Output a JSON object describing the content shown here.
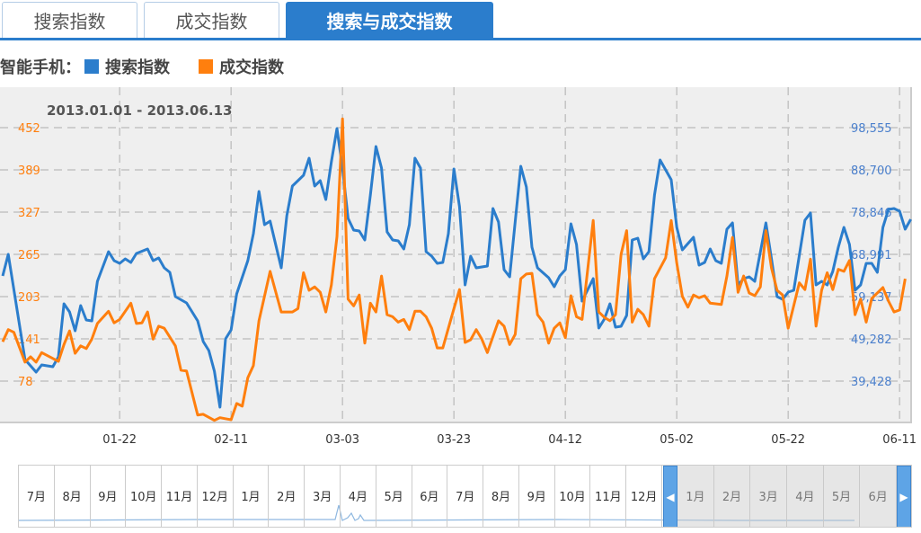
{
  "tabs": [
    {
      "label": "搜索指数",
      "active": false
    },
    {
      "label": "成交指数",
      "active": false
    },
    {
      "label": "搜索与成交指数",
      "active": true
    }
  ],
  "legend": {
    "prefix": "智能手机：",
    "items": [
      {
        "label": "搜索指数",
        "color": "#2b7dcc"
      },
      {
        "label": "成交指数",
        "color": "#ff7f0e"
      }
    ]
  },
  "chart_data": {
    "type": "line",
    "title": "2013.01.01 - 2013.06.13",
    "x_unit": "days since 2013-01-01",
    "xlim": [
      0,
      163
    ],
    "x_ticks": [
      {
        "day": 21,
        "label": "01-22"
      },
      {
        "day": 41,
        "label": "02-11"
      },
      {
        "day": 61,
        "label": "03-03"
      },
      {
        "day": 81,
        "label": "03-23"
      },
      {
        "day": 101,
        "label": "04-12"
      },
      {
        "day": 121,
        "label": "05-02"
      },
      {
        "day": 141,
        "label": "05-22"
      },
      {
        "day": 161,
        "label": "06-11"
      }
    ],
    "y_left": {
      "ticks": [
        "452",
        "389",
        "327",
        "265",
        "203",
        "141",
        "78"
      ],
      "values": [
        452,
        389,
        327,
        265,
        203,
        141,
        78
      ],
      "color": "#ff7f0e"
    },
    "y_right": {
      "ticks": [
        "98,555",
        "88,700",
        "78,846",
        "68,991",
        "59,137",
        "49,282",
        "39,428"
      ],
      "values": [
        98555,
        88700,
        78846,
        68991,
        59137,
        49282,
        39428
      ],
      "color": "#4a7fcc"
    },
    "grid": true,
    "series": [
      {
        "name": "搜索指数",
        "axis": "right",
        "color": "#2b7dcc",
        "points": [
          [
            0,
            63960
          ],
          [
            1,
            68990
          ],
          [
            4,
            44460
          ],
          [
            6,
            41525
          ],
          [
            7,
            43200
          ],
          [
            9,
            42780
          ],
          [
            10,
            45090
          ],
          [
            11,
            57460
          ],
          [
            12,
            55570
          ],
          [
            13,
            51170
          ],
          [
            14,
            57040
          ],
          [
            15,
            53690
          ],
          [
            16,
            53480
          ],
          [
            17,
            62700
          ],
          [
            19,
            69620
          ],
          [
            20,
            67520
          ],
          [
            21,
            66900
          ],
          [
            22,
            67940
          ],
          [
            23,
            67100
          ],
          [
            24,
            69200
          ],
          [
            26,
            70250
          ],
          [
            27,
            67520
          ],
          [
            28,
            68150
          ],
          [
            29,
            65850
          ],
          [
            30,
            64800
          ],
          [
            31,
            59140
          ],
          [
            33,
            57670
          ],
          [
            35,
            53480
          ],
          [
            36,
            48650
          ],
          [
            37,
            46560
          ],
          [
            38,
            41735
          ],
          [
            39,
            33350
          ],
          [
            40,
            49280
          ],
          [
            41,
            51380
          ],
          [
            42,
            59770
          ],
          [
            44,
            67520
          ],
          [
            45,
            73810
          ],
          [
            46,
            83670
          ],
          [
            47,
            75910
          ],
          [
            48,
            76750
          ],
          [
            50,
            65850
          ],
          [
            51,
            78010
          ],
          [
            52,
            84930
          ],
          [
            54,
            87440
          ],
          [
            55,
            91430
          ],
          [
            56,
            84930
          ],
          [
            57,
            86180
          ],
          [
            58,
            81780
          ],
          [
            59,
            90590
          ],
          [
            60,
            98350
          ],
          [
            61,
            89120
          ],
          [
            62,
            77380
          ],
          [
            63,
            74650
          ],
          [
            64,
            74440
          ],
          [
            65,
            72350
          ],
          [
            66,
            82830
          ],
          [
            67,
            94150
          ],
          [
            68,
            89120
          ],
          [
            69,
            74230
          ],
          [
            70,
            72350
          ],
          [
            71,
            72140
          ],
          [
            72,
            70250
          ],
          [
            73,
            75910
          ],
          [
            74,
            91430
          ],
          [
            75,
            89120
          ],
          [
            76,
            69620
          ],
          [
            77,
            68570
          ],
          [
            78,
            66900
          ],
          [
            79,
            67100
          ],
          [
            80,
            73810
          ],
          [
            81,
            88910
          ],
          [
            82,
            80100
          ],
          [
            83,
            61860
          ],
          [
            84,
            68570
          ],
          [
            85,
            65850
          ],
          [
            87,
            66270
          ],
          [
            88,
            79690
          ],
          [
            89,
            76540
          ],
          [
            90,
            65430
          ],
          [
            91,
            63750
          ],
          [
            93,
            89540
          ],
          [
            94,
            84720
          ],
          [
            95,
            70670
          ],
          [
            96,
            65850
          ],
          [
            98,
            63540
          ],
          [
            99,
            61440
          ],
          [
            100,
            63960
          ],
          [
            101,
            65430
          ],
          [
            102,
            76120
          ],
          [
            103,
            71300
          ],
          [
            104,
            58090
          ],
          [
            106,
            63330
          ],
          [
            107,
            51800
          ],
          [
            108,
            53900
          ],
          [
            109,
            57460
          ],
          [
            110,
            52010
          ],
          [
            111,
            52220
          ],
          [
            112,
            54730
          ],
          [
            113,
            72350
          ],
          [
            114,
            72770
          ],
          [
            115,
            67940
          ],
          [
            116,
            69620
          ],
          [
            117,
            82830
          ],
          [
            118,
            91010
          ],
          [
            120,
            86390
          ],
          [
            121,
            75280
          ],
          [
            122,
            70040
          ],
          [
            124,
            72980
          ],
          [
            125,
            66480
          ],
          [
            126,
            67100
          ],
          [
            127,
            70250
          ],
          [
            128,
            67520
          ],
          [
            129,
            66900
          ],
          [
            130,
            74860
          ],
          [
            131,
            76330
          ],
          [
            132,
            61860
          ],
          [
            133,
            63330
          ],
          [
            134,
            63750
          ],
          [
            135,
            62700
          ],
          [
            137,
            76330
          ],
          [
            138,
            67940
          ],
          [
            139,
            59140
          ],
          [
            140,
            58510
          ],
          [
            141,
            60190
          ],
          [
            142,
            60600
          ],
          [
            144,
            76960
          ],
          [
            145,
            78640
          ],
          [
            146,
            61860
          ],
          [
            147,
            62700
          ],
          [
            148,
            61860
          ],
          [
            149,
            65010
          ],
          [
            150,
            70670
          ],
          [
            151,
            75280
          ],
          [
            152,
            71300
          ],
          [
            153,
            60600
          ],
          [
            154,
            61860
          ],
          [
            155,
            66900
          ],
          [
            156,
            66900
          ],
          [
            157,
            64800
          ],
          [
            158,
            75280
          ],
          [
            159,
            79480
          ],
          [
            160,
            79690
          ],
          [
            161,
            79060
          ],
          [
            162,
            74860
          ],
          [
            163,
            77170
          ]
        ]
      },
      {
        "name": "成交指数",
        "axis": "left",
        "color": "#ff7f0e",
        "points": [
          [
            0,
            136
          ],
          [
            1,
            154
          ],
          [
            2,
            150
          ],
          [
            4,
            106
          ],
          [
            5,
            114
          ],
          [
            6,
            106
          ],
          [
            7,
            120
          ],
          [
            10,
            107
          ],
          [
            11,
            132
          ],
          [
            12,
            152
          ],
          [
            13,
            119
          ],
          [
            14,
            130
          ],
          [
            15,
            126
          ],
          [
            16,
            140
          ],
          [
            17,
            163
          ],
          [
            19,
            181
          ],
          [
            20,
            164
          ],
          [
            21,
            169
          ],
          [
            23,
            193
          ],
          [
            24,
            163
          ],
          [
            25,
            164
          ],
          [
            26,
            180
          ],
          [
            27,
            140
          ],
          [
            28,
            159
          ],
          [
            29,
            156
          ],
          [
            31,
            130
          ],
          [
            32,
            94
          ],
          [
            33,
            93
          ],
          [
            35,
            28
          ],
          [
            36,
            29
          ],
          [
            38,
            20
          ],
          [
            39,
            24
          ],
          [
            41,
            21
          ],
          [
            42,
            45
          ],
          [
            43,
            41
          ],
          [
            44,
            83
          ],
          [
            45,
            101
          ],
          [
            46,
            167
          ],
          [
            48,
            240
          ],
          [
            50,
            180
          ],
          [
            52,
            180
          ],
          [
            53,
            185
          ],
          [
            54,
            238
          ],
          [
            55,
            212
          ],
          [
            56,
            217
          ],
          [
            57,
            209
          ],
          [
            58,
            180
          ],
          [
            59,
            220
          ],
          [
            60,
            291
          ],
          [
            61,
            465
          ],
          [
            62,
            199
          ],
          [
            63,
            189
          ],
          [
            64,
            205
          ],
          [
            65,
            134
          ],
          [
            66,
            193
          ],
          [
            67,
            180
          ],
          [
            68,
            233
          ],
          [
            69,
            176
          ],
          [
            70,
            173
          ],
          [
            71,
            165
          ],
          [
            72,
            169
          ],
          [
            73,
            154
          ],
          [
            74,
            181
          ],
          [
            75,
            181
          ],
          [
            76,
            173
          ],
          [
            77,
            156
          ],
          [
            78,
            127
          ],
          [
            79,
            127
          ],
          [
            80,
            156
          ],
          [
            81,
            185
          ],
          [
            82,
            213
          ],
          [
            83,
            135
          ],
          [
            84,
            139
          ],
          [
            85,
            154
          ],
          [
            86,
            140
          ],
          [
            87,
            120
          ],
          [
            89,
            167
          ],
          [
            90,
            159
          ],
          [
            91,
            132
          ],
          [
            92,
            147
          ],
          [
            93,
            229
          ],
          [
            94,
            236
          ],
          [
            95,
            237
          ],
          [
            96,
            176
          ],
          [
            97,
            165
          ],
          [
            98,
            134
          ],
          [
            99,
            156
          ],
          [
            100,
            164
          ],
          [
            101,
            142
          ],
          [
            102,
            204
          ],
          [
            103,
            173
          ],
          [
            104,
            169
          ],
          [
            106,
            315
          ],
          [
            107,
            180
          ],
          [
            108,
            172
          ],
          [
            109,
            167
          ],
          [
            110,
            176
          ],
          [
            111,
            265
          ],
          [
            112,
            300
          ],
          [
            113,
            165
          ],
          [
            114,
            184
          ],
          [
            115,
            176
          ],
          [
            116,
            159
          ],
          [
            117,
            229
          ],
          [
            119,
            260
          ],
          [
            120,
            315
          ],
          [
            121,
            252
          ],
          [
            122,
            203
          ],
          [
            123,
            187
          ],
          [
            124,
            205
          ],
          [
            125,
            201
          ],
          [
            126,
            204
          ],
          [
            127,
            193
          ],
          [
            129,
            191
          ],
          [
            130,
            233
          ],
          [
            131,
            290
          ],
          [
            132,
            209
          ],
          [
            133,
            233
          ],
          [
            134,
            208
          ],
          [
            135,
            204
          ],
          [
            136,
            217
          ],
          [
            137,
            300
          ],
          [
            138,
            245
          ],
          [
            139,
            212
          ],
          [
            140,
            205
          ],
          [
            141,
            156
          ],
          [
            143,
            223
          ],
          [
            144,
            213
          ],
          [
            145,
            258
          ],
          [
            146,
            159
          ],
          [
            147,
            212
          ],
          [
            148,
            238
          ],
          [
            149,
            213
          ],
          [
            150,
            243
          ],
          [
            151,
            240
          ],
          [
            152,
            256
          ],
          [
            153,
            176
          ],
          [
            154,
            199
          ],
          [
            155,
            165
          ],
          [
            156,
            200
          ],
          [
            158,
            216
          ],
          [
            159,
            196
          ],
          [
            160,
            180
          ],
          [
            161,
            183
          ],
          [
            162,
            229
          ]
        ]
      }
    ]
  },
  "navigator": {
    "months_before": [
      "7月",
      "8月",
      "9月",
      "10月",
      "11月",
      "12月",
      "1月",
      "2月",
      "3月",
      "4月",
      "5月",
      "6月",
      "7月",
      "8月",
      "9月",
      "10月",
      "11月",
      "12月"
    ],
    "months_selected": [
      "1月",
      "2月",
      "3月",
      "4月",
      "5月",
      "6月"
    ],
    "left_handle": "◀",
    "right_handle": "▶"
  }
}
